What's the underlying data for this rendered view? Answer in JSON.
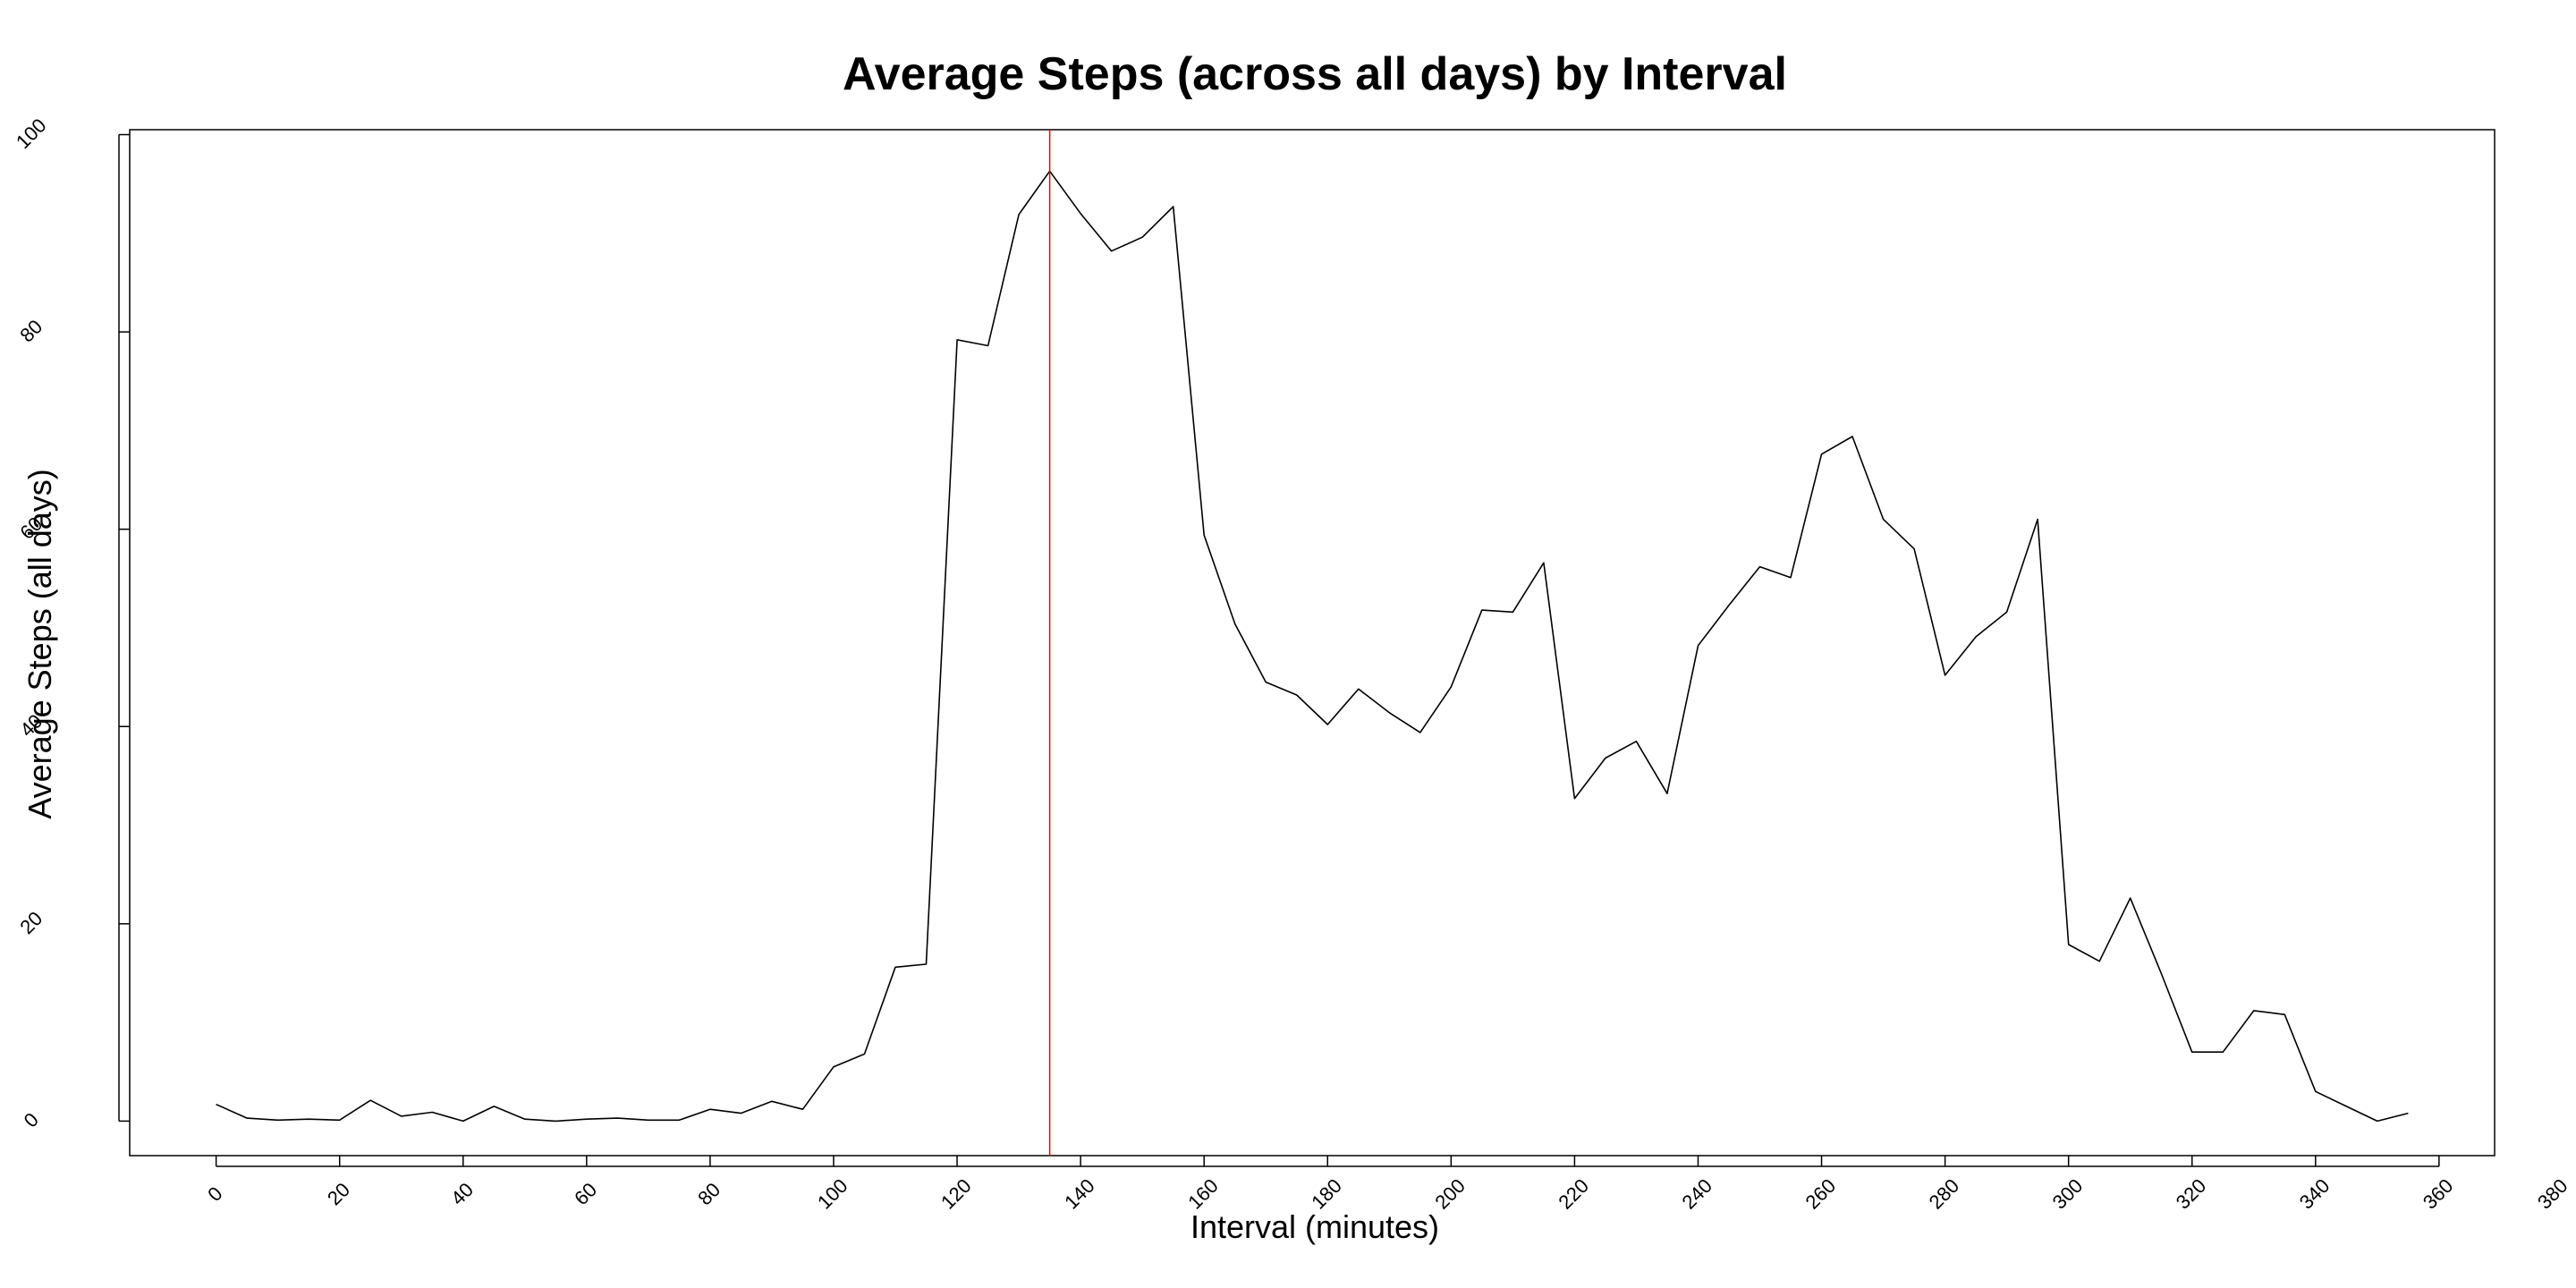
{
  "chart_data": {
    "type": "line",
    "title": "Average Steps (across all days) by Interval",
    "xlabel": "Interval (minutes)",
    "ylabel": "Average Steps (all days)",
    "xlim": [
      -14,
      369
    ],
    "ylim": [
      -3.5,
      100.5
    ],
    "x_ticks": [
      0,
      20,
      40,
      60,
      80,
      100,
      120,
      140,
      160,
      180,
      200,
      220,
      240,
      260,
      280,
      300,
      320,
      340,
      360,
      380
    ],
    "y_ticks": [
      0,
      20,
      40,
      60,
      80,
      100
    ],
    "y_tick_labels": [
      "0",
      "20",
      "40",
      "60",
      "80",
      "100"
    ],
    "grid": false,
    "series": [
      {
        "color": "#000000",
        "x": [
          0,
          5,
          10,
          15,
          20,
          25,
          30,
          35,
          40,
          45,
          50,
          55,
          60,
          65,
          70,
          75,
          80,
          85,
          90,
          95,
          100,
          105,
          110,
          115,
          120,
          125,
          130,
          135,
          140,
          145,
          150,
          155,
          160,
          165,
          170,
          175,
          180,
          185,
          190,
          195,
          200,
          205,
          210,
          215,
          220,
          225,
          230,
          235,
          240,
          245,
          250,
          255,
          260,
          265,
          270,
          275,
          280,
          285,
          290,
          295,
          300,
          305,
          310,
          315,
          320,
          325,
          330,
          335,
          340,
          345,
          350,
          355
        ],
        "y": [
          1.7,
          0.3,
          0.1,
          0.2,
          0.1,
          2.1,
          0.5,
          0.9,
          0.0,
          1.5,
          0.2,
          0.0,
          0.2,
          0.3,
          0.1,
          0.1,
          1.2,
          0.8,
          2.0,
          1.2,
          5.5,
          6.8,
          15.6,
          15.9,
          79.2,
          78.6,
          91.9,
          96.3,
          92.0,
          88.2,
          89.6,
          92.7,
          59.4,
          50.4,
          44.5,
          43.2,
          40.2,
          43.8,
          41.4,
          39.4,
          44.0,
          51.8,
          51.6,
          56.6,
          32.7,
          36.8,
          38.5,
          33.2,
          48.2,
          52.3,
          56.2,
          55.1,
          67.6,
          69.4,
          61.0,
          58.0,
          45.2,
          49.1,
          51.6,
          61.0,
          17.9,
          16.2,
          22.6,
          15.0,
          7.0,
          7.0,
          11.2,
          10.8,
          3.0,
          1.5,
          0.0,
          0.8
        ]
      }
    ],
    "annotations": [
      {
        "type": "vline",
        "x": 135,
        "color": "#ff0000"
      }
    ]
  }
}
